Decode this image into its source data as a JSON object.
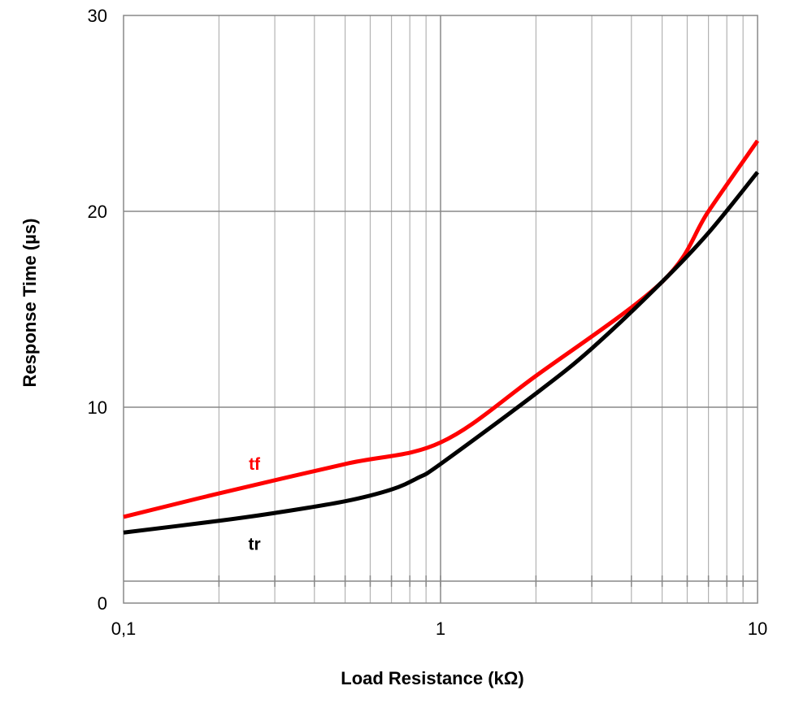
{
  "chart_data": {
    "type": "line",
    "xlabel": "Load Resistance (kΩ)",
    "ylabel": "Response Time (µs)",
    "x_scale": "log",
    "xlim": [
      0.1,
      10
    ],
    "ylim": [
      0,
      30
    ],
    "x_ticks": [
      {
        "value": 0.1,
        "label": "0,1"
      },
      {
        "value": 1,
        "label": "1"
      },
      {
        "value": 10,
        "label": "10"
      }
    ],
    "y_ticks": [
      {
        "value": 0,
        "label": "0"
      },
      {
        "value": 10,
        "label": "10"
      },
      {
        "value": 20,
        "label": "20"
      },
      {
        "value": 30,
        "label": "30"
      }
    ],
    "grid": true,
    "series": [
      {
        "name": "tf",
        "color": "#ff0000",
        "points": [
          [
            0.1,
            4.4
          ],
          [
            0.2,
            5.6
          ],
          [
            0.5,
            7.1
          ],
          [
            1,
            8.2
          ],
          [
            2,
            11.6
          ],
          [
            5,
            16.4
          ],
          [
            7,
            20.0
          ],
          [
            10,
            23.6
          ]
        ]
      },
      {
        "name": "tr",
        "color": "#000000",
        "points": [
          [
            0.1,
            3.6
          ],
          [
            0.2,
            4.2
          ],
          [
            0.3,
            4.6
          ],
          [
            0.5,
            5.2
          ],
          [
            0.7,
            5.8
          ],
          [
            0.85,
            6.4
          ],
          [
            1,
            7.1
          ],
          [
            2,
            10.7
          ],
          [
            3,
            13.0
          ],
          [
            5,
            16.4
          ],
          [
            7,
            18.9
          ],
          [
            10,
            22.0
          ]
        ]
      }
    ],
    "annotations": [
      {
        "text": "tf",
        "x": 0.23,
        "y": 7.1,
        "color": "#ff0000"
      },
      {
        "text": "tr",
        "x": 0.23,
        "y": 3.0,
        "color": "#000000"
      }
    ]
  }
}
